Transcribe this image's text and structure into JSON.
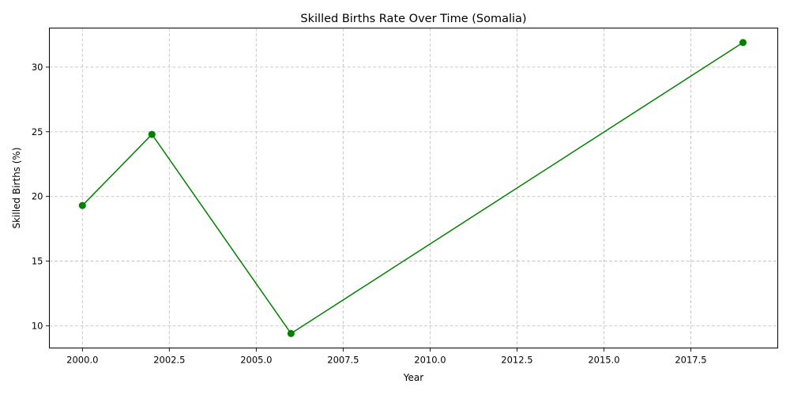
{
  "chart_data": {
    "type": "line",
    "title": "Skilled Births Rate Over Time (Somalia)",
    "xlabel": "Year",
    "ylabel": "Skilled Births (%)",
    "xlim": [
      1999.05,
      2020.0
    ],
    "ylim": [
      8.28,
      33.02
    ],
    "xticks": [
      2000.0,
      2002.5,
      2005.0,
      2007.5,
      2010.0,
      2012.5,
      2015.0,
      2017.5
    ],
    "xtick_labels": [
      "2000.0",
      "2002.5",
      "2005.0",
      "2007.5",
      "2010.0",
      "2012.5",
      "2015.0",
      "2017.5"
    ],
    "yticks": [
      10,
      15,
      20,
      25,
      30
    ],
    "ytick_labels": [
      "10",
      "15",
      "20",
      "25",
      "30"
    ],
    "grid": true,
    "series": [
      {
        "color": "#008000",
        "marker": "circle",
        "x": [
          2000,
          2002,
          2006,
          2019
        ],
        "y": [
          19.3,
          24.8,
          9.4,
          31.9
        ]
      }
    ]
  }
}
